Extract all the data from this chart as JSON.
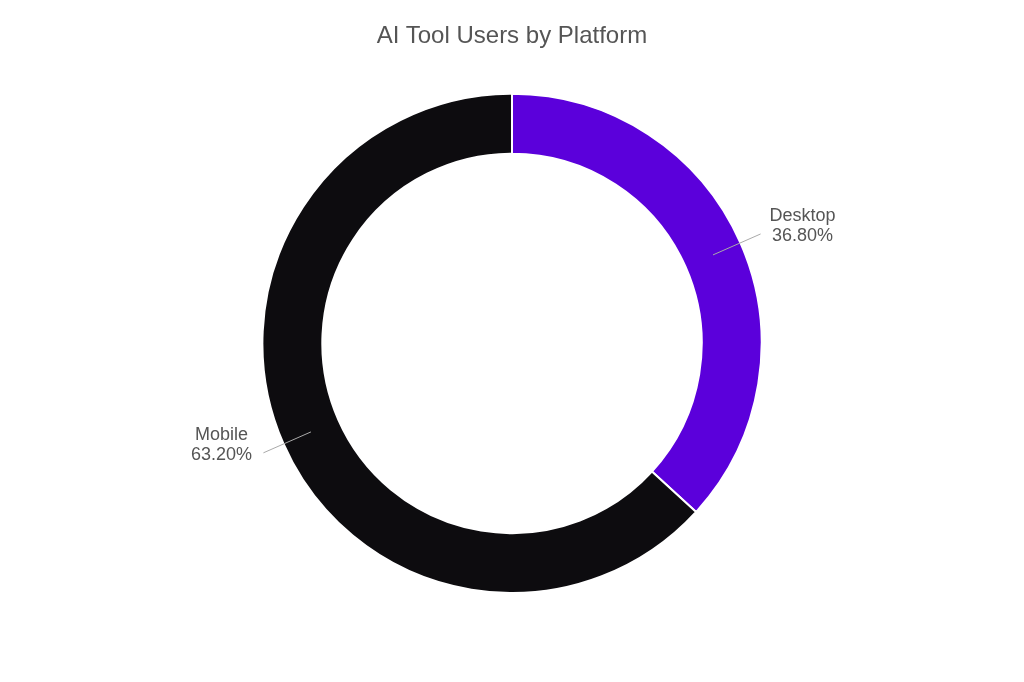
{
  "chart_data": {
    "type": "donut",
    "title": "AI Tool Users by Platform",
    "categories": [
      "Desktop",
      "Mobile"
    ],
    "values": [
      36.8,
      63.2
    ],
    "value_labels": [
      "36.80%",
      "63.20%"
    ],
    "colors": [
      "#5b00db",
      "#0d0c0f"
    ],
    "legend": false
  }
}
